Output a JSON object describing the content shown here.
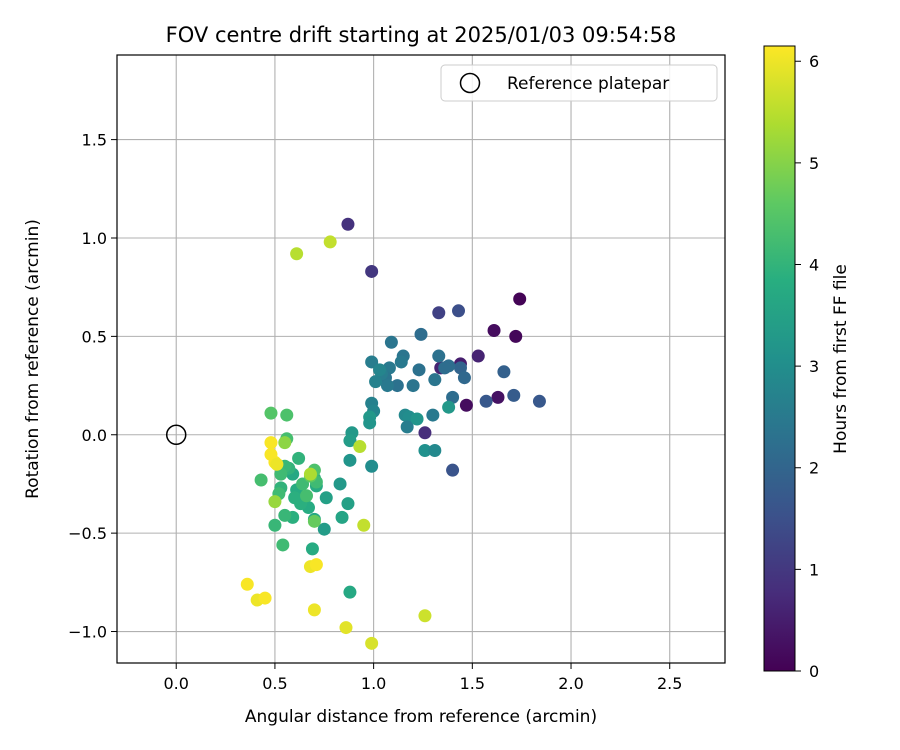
{
  "chart_data": {
    "type": "scatter",
    "title": "FOV centre drift starting at 2025/01/03 09:54:58",
    "xlabel": "Angular distance from reference (arcmin)",
    "ylabel": "Rotation from reference (arcmin)",
    "xlim": [
      -0.3,
      2.78
    ],
    "ylim": [
      -1.16,
      1.93
    ],
    "xticks": [
      0.0,
      0.5,
      1.0,
      1.5,
      2.0,
      2.5
    ],
    "xtick_labels": [
      "0.0",
      "0.5",
      "1.0",
      "1.5",
      "2.0",
      "2.5"
    ],
    "yticks": [
      -1.0,
      -0.5,
      0.0,
      0.5,
      1.0,
      1.5
    ],
    "ytick_labels": [
      "−1.0",
      "−0.5",
      "0.0",
      "0.5",
      "1.0",
      "1.5"
    ],
    "grid": true,
    "legend": {
      "placement": "top-right",
      "entries": [
        "Reference platepar"
      ]
    },
    "reference_point": {
      "x": 0.0,
      "y": 0.0
    },
    "colorbar": {
      "label": "Hours from first FF file",
      "range": [
        0,
        6.15
      ],
      "ticks": [
        0,
        1,
        2,
        3,
        4,
        5,
        6
      ],
      "tick_labels": [
        "0",
        "1",
        "2",
        "3",
        "4",
        "5",
        "6"
      ],
      "colormap": "viridis"
    },
    "points": [
      {
        "x": 1.74,
        "y": 0.69,
        "c": 0.05
      },
      {
        "x": 1.72,
        "y": 0.5,
        "c": 0.1
      },
      {
        "x": 1.61,
        "y": 0.53,
        "c": 0.2
      },
      {
        "x": 1.63,
        "y": 0.19,
        "c": 0.3
      },
      {
        "x": 1.47,
        "y": 0.15,
        "c": 0.2
      },
      {
        "x": 1.53,
        "y": 0.4,
        "c": 0.6
      },
      {
        "x": 1.44,
        "y": 0.36,
        "c": 0.5
      },
      {
        "x": 1.34,
        "y": 0.34,
        "c": 0.6
      },
      {
        "x": 1.26,
        "y": 0.01,
        "c": 0.8
      },
      {
        "x": 0.87,
        "y": 1.07,
        "c": 0.9
      },
      {
        "x": 0.99,
        "y": 0.83,
        "c": 1.0
      },
      {
        "x": 1.33,
        "y": 0.62,
        "c": 1.2
      },
      {
        "x": 1.43,
        "y": 0.63,
        "c": 1.5
      },
      {
        "x": 1.4,
        "y": -0.18,
        "c": 1.6
      },
      {
        "x": 1.57,
        "y": 0.17,
        "c": 1.7
      },
      {
        "x": 1.66,
        "y": 0.32,
        "c": 1.9
      },
      {
        "x": 1.71,
        "y": 0.2,
        "c": 1.8
      },
      {
        "x": 1.84,
        "y": 0.17,
        "c": 1.7
      },
      {
        "x": 1.44,
        "y": 0.34,
        "c": 2.0
      },
      {
        "x": 1.46,
        "y": 0.29,
        "c": 2.1
      },
      {
        "x": 1.38,
        "y": 0.35,
        "c": 2.2
      },
      {
        "x": 1.33,
        "y": 0.4,
        "c": 2.3
      },
      {
        "x": 1.36,
        "y": 0.34,
        "c": 2.2
      },
      {
        "x": 1.31,
        "y": 0.28,
        "c": 2.4
      },
      {
        "x": 1.24,
        "y": 0.51,
        "c": 2.2
      },
      {
        "x": 1.23,
        "y": 0.33,
        "c": 2.3
      },
      {
        "x": 1.15,
        "y": 0.4,
        "c": 2.4
      },
      {
        "x": 1.14,
        "y": 0.37,
        "c": 2.5
      },
      {
        "x": 1.12,
        "y": 0.25,
        "c": 2.3
      },
      {
        "x": 1.09,
        "y": 0.47,
        "c": 2.4
      },
      {
        "x": 1.08,
        "y": 0.34,
        "c": 2.5
      },
      {
        "x": 1.06,
        "y": 0.29,
        "c": 2.4
      },
      {
        "x": 1.04,
        "y": 0.31,
        "c": 2.6
      },
      {
        "x": 1.07,
        "y": 0.25,
        "c": 2.5
      },
      {
        "x": 1.01,
        "y": 0.27,
        "c": 2.7
      },
      {
        "x": 0.99,
        "y": 0.37,
        "c": 2.6
      },
      {
        "x": 1.03,
        "y": 0.33,
        "c": 2.8
      },
      {
        "x": 1.2,
        "y": 0.25,
        "c": 2.4
      },
      {
        "x": 1.3,
        "y": 0.1,
        "c": 2.5
      },
      {
        "x": 1.4,
        "y": 0.19,
        "c": 2.2
      },
      {
        "x": 0.99,
        "y": 0.16,
        "c": 2.7
      },
      {
        "x": 1.0,
        "y": 0.12,
        "c": 2.8
      },
      {
        "x": 1.16,
        "y": 0.1,
        "c": 2.9
      },
      {
        "x": 1.18,
        "y": 0.09,
        "c": 3.0
      },
      {
        "x": 1.17,
        "y": 0.04,
        "c": 2.6
      },
      {
        "x": 1.22,
        "y": 0.08,
        "c": 3.2
      },
      {
        "x": 1.38,
        "y": 0.14,
        "c": 3.3
      },
      {
        "x": 1.26,
        "y": -0.08,
        "c": 3.1
      },
      {
        "x": 1.31,
        "y": -0.08,
        "c": 2.9
      },
      {
        "x": 0.98,
        "y": 0.09,
        "c": 3.3
      },
      {
        "x": 0.98,
        "y": 0.06,
        "c": 3.2
      },
      {
        "x": 0.99,
        "y": -0.16,
        "c": 3.0
      },
      {
        "x": 0.89,
        "y": 0.01,
        "c": 3.3
      },
      {
        "x": 0.88,
        "y": -0.03,
        "c": 3.4
      },
      {
        "x": 0.88,
        "y": -0.13,
        "c": 3.2
      },
      {
        "x": 0.83,
        "y": -0.25,
        "c": 3.3
      },
      {
        "x": 0.87,
        "y": -0.35,
        "c": 3.5
      },
      {
        "x": 0.84,
        "y": -0.42,
        "c": 3.6
      },
      {
        "x": 0.76,
        "y": -0.32,
        "c": 3.5
      },
      {
        "x": 0.75,
        "y": -0.48,
        "c": 3.4
      },
      {
        "x": 0.7,
        "y": -0.43,
        "c": 3.7
      },
      {
        "x": 0.69,
        "y": -0.58,
        "c": 3.8
      },
      {
        "x": 0.88,
        "y": -0.8,
        "c": 3.7
      },
      {
        "x": 0.71,
        "y": -0.26,
        "c": 3.8
      },
      {
        "x": 0.7,
        "y": -0.22,
        "c": 3.9
      },
      {
        "x": 0.67,
        "y": -0.37,
        "c": 3.8
      },
      {
        "x": 0.63,
        "y": -0.35,
        "c": 3.9
      },
      {
        "x": 0.61,
        "y": -0.28,
        "c": 3.8
      },
      {
        "x": 0.6,
        "y": -0.32,
        "c": 3.9
      },
      {
        "x": 0.59,
        "y": -0.2,
        "c": 3.7
      },
      {
        "x": 0.62,
        "y": -0.12,
        "c": 4.0
      },
      {
        "x": 0.57,
        "y": -0.17,
        "c": 4.0
      },
      {
        "x": 0.55,
        "y": -0.16,
        "c": 4.1
      },
      {
        "x": 0.53,
        "y": -0.27,
        "c": 4.0
      },
      {
        "x": 0.52,
        "y": -0.3,
        "c": 4.2
      },
      {
        "x": 0.53,
        "y": -0.2,
        "c": 4.2
      },
      {
        "x": 0.59,
        "y": -0.42,
        "c": 3.9
      },
      {
        "x": 0.55,
        "y": -0.41,
        "c": 4.1
      },
      {
        "x": 0.5,
        "y": -0.46,
        "c": 4.1
      },
      {
        "x": 0.54,
        "y": -0.56,
        "c": 4.2
      },
      {
        "x": 0.43,
        "y": -0.23,
        "c": 4.3
      },
      {
        "x": 0.56,
        "y": -0.02,
        "c": 4.3
      },
      {
        "x": 0.56,
        "y": 0.1,
        "c": 4.4
      },
      {
        "x": 0.48,
        "y": 0.11,
        "c": 4.5
      },
      {
        "x": 0.64,
        "y": -0.25,
        "c": 4.2
      },
      {
        "x": 0.66,
        "y": -0.31,
        "c": 4.3
      },
      {
        "x": 0.7,
        "y": -0.18,
        "c": 4.4
      },
      {
        "x": 0.71,
        "y": -0.24,
        "c": 4.2
      },
      {
        "x": 0.68,
        "y": -0.21,
        "c": 4.6
      },
      {
        "x": 0.7,
        "y": -0.44,
        "c": 4.7
      },
      {
        "x": 0.5,
        "y": -0.34,
        "c": 5.2
      },
      {
        "x": 0.55,
        "y": -0.04,
        "c": 5.1
      },
      {
        "x": 0.61,
        "y": 0.92,
        "c": 5.5
      },
      {
        "x": 0.78,
        "y": 0.98,
        "c": 5.6
      },
      {
        "x": 0.93,
        "y": -0.06,
        "c": 5.5
      },
      {
        "x": 0.95,
        "y": -0.46,
        "c": 5.6
      },
      {
        "x": 0.68,
        "y": -0.2,
        "c": 5.4
      },
      {
        "x": 1.26,
        "y": -0.92,
        "c": 5.7
      },
      {
        "x": 0.99,
        "y": -1.06,
        "c": 5.8
      },
      {
        "x": 0.86,
        "y": -0.98,
        "c": 5.9
      },
      {
        "x": 0.7,
        "y": -0.89,
        "c": 6.0
      },
      {
        "x": 0.68,
        "y": -0.67,
        "c": 6.0
      },
      {
        "x": 0.71,
        "y": -0.66,
        "c": 6.1
      },
      {
        "x": 0.36,
        "y": -0.76,
        "c": 6.1
      },
      {
        "x": 0.41,
        "y": -0.84,
        "c": 6.0
      },
      {
        "x": 0.45,
        "y": -0.83,
        "c": 6.1
      },
      {
        "x": 0.48,
        "y": -0.04,
        "c": 6.1
      },
      {
        "x": 0.48,
        "y": -0.1,
        "c": 6.1
      },
      {
        "x": 0.5,
        "y": -0.14,
        "c": 6.1
      },
      {
        "x": 0.51,
        "y": -0.15,
        "c": 6.0
      }
    ]
  }
}
